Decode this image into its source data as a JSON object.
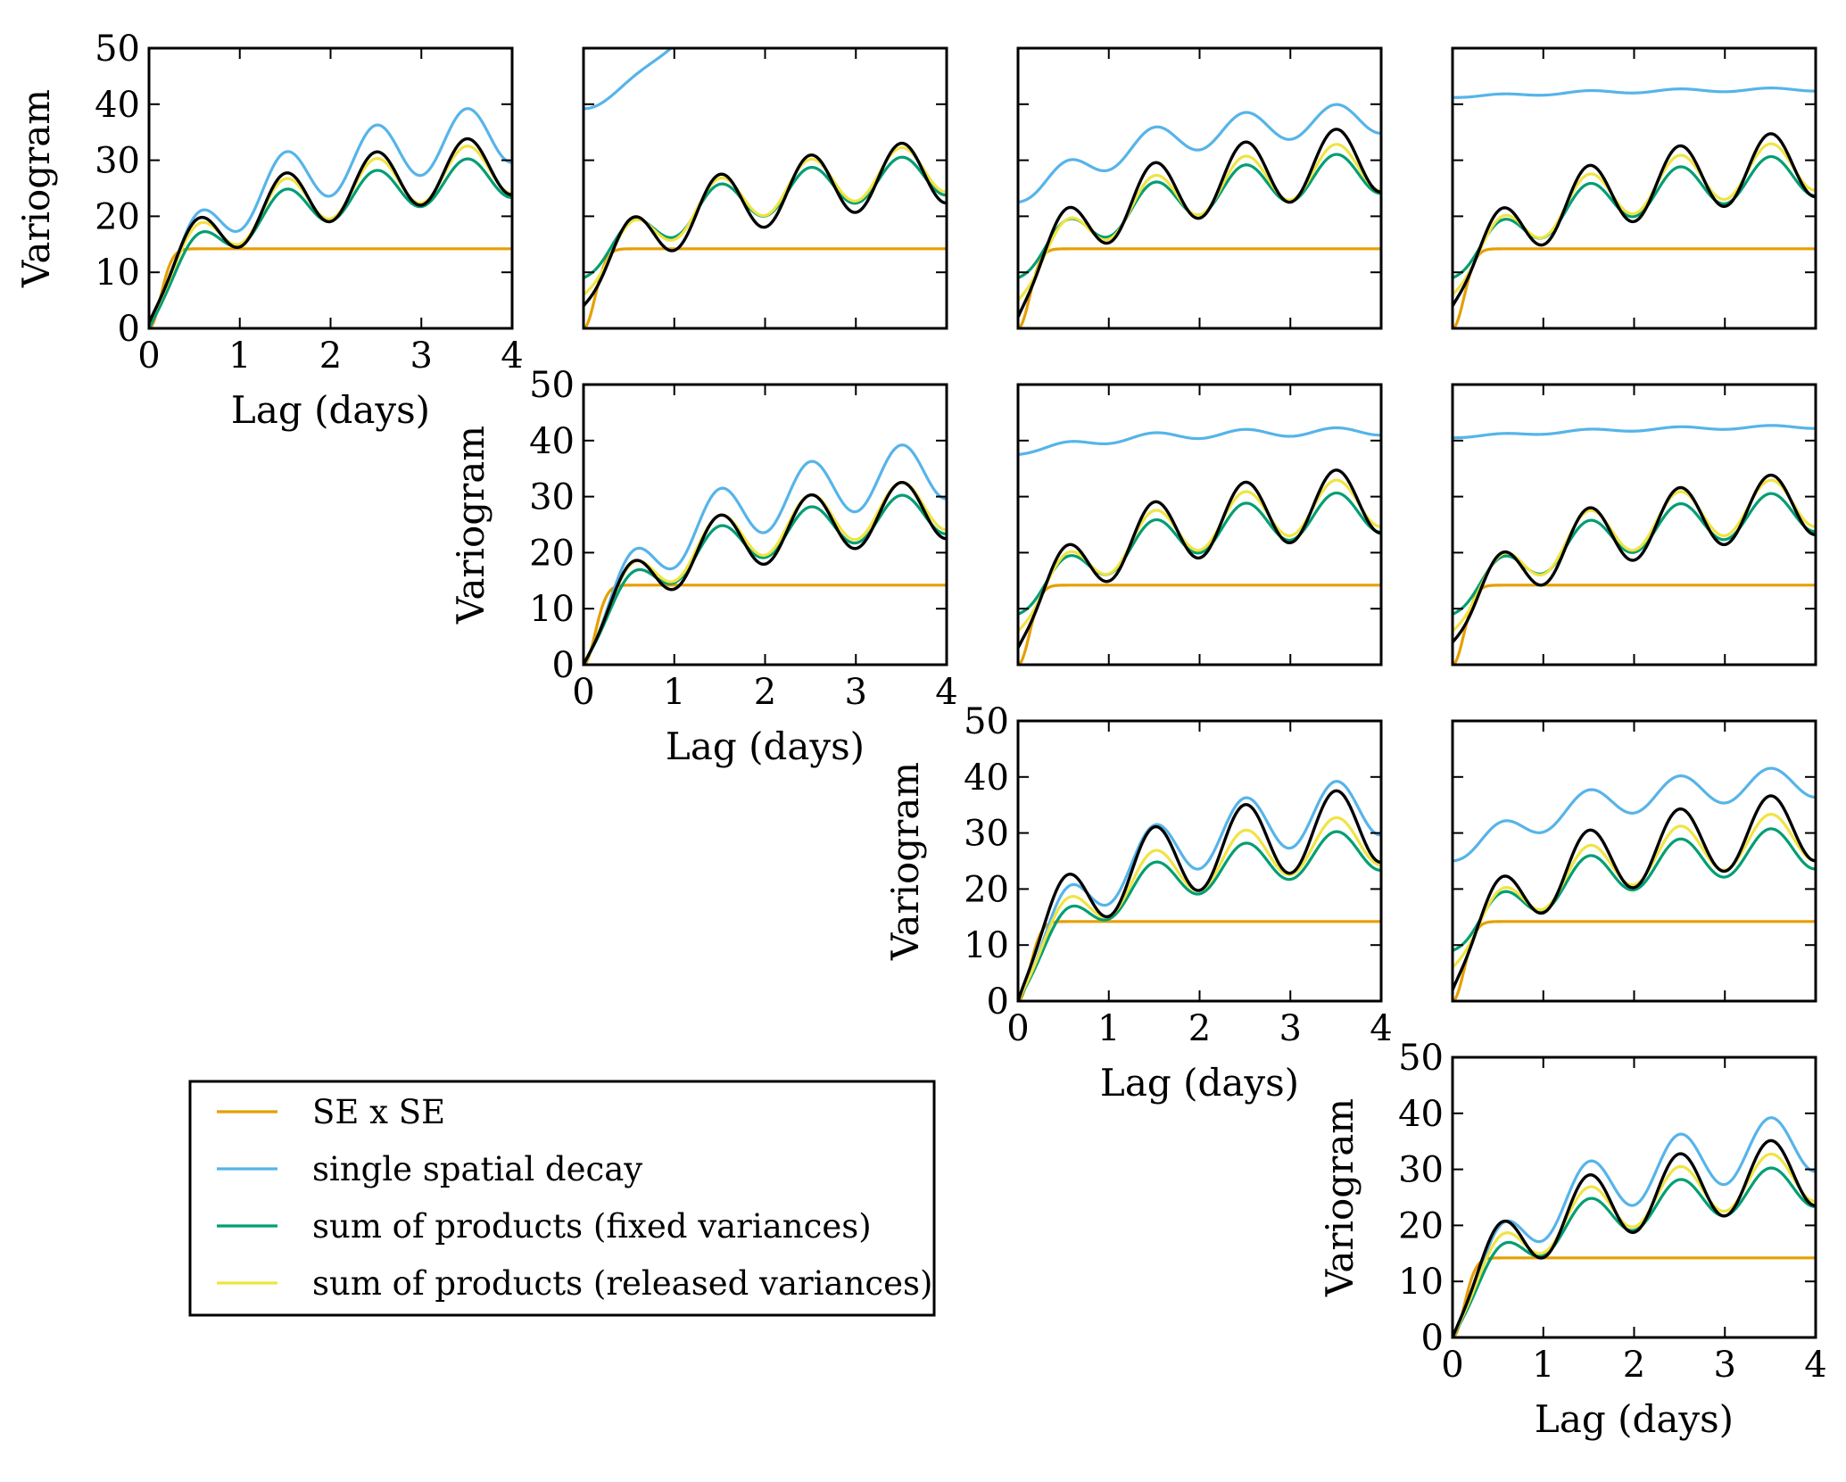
{
  "chart_data": {
    "type": "line",
    "layout": "lower-triangular grid of 10 variogram panels (4 rows, 4 columns)",
    "legend": {
      "placement": "lower-left",
      "entries": [
        {
          "label": "SE x SE",
          "color": "#E69F00"
        },
        {
          "label": "single spatial decay",
          "color": "#56B4E9"
        },
        {
          "label": "sum of products (fixed variances)",
          "color": "#009E73"
        },
        {
          "label": "sum of products (released variances)",
          "color": "#F0E442"
        }
      ]
    },
    "empirical_color": "#000000",
    "xlim": [
      0,
      4
    ],
    "ylim": [
      0,
      50
    ],
    "xticks": [
      "0",
      "1",
      "2",
      "3",
      "4"
    ],
    "yticks": [
      "0",
      "10",
      "20",
      "30",
      "40",
      "50"
    ],
    "xlabel": "Lag (days)",
    "ylabel": "Variogram",
    "panels": [
      {
        "row": 0,
        "col": 0,
        "show_x_labels": true,
        "show_y_labels": true,
        "empirical": {
          "start": 1,
          "a": 12.5,
          "b": 20,
          "tau": 0.22,
          "c": 5.4,
          "phase": "cos"
        },
        "fixed": {
          "start": 0,
          "a": 12.5,
          "b": 17.5,
          "tau": 0.28,
          "c": 3.8,
          "phase": "cos"
        },
        "released": {
          "start": 1,
          "a": 12.8,
          "b": 19,
          "tau": 0.25,
          "c": 4.6,
          "phase": "cos"
        },
        "se_sill": 14.2,
        "single": {
          "start": 0,
          "a": 14,
          "b": 25,
          "tau": 0.28,
          "c": 5.3,
          "phase": "cos"
        }
      },
      {
        "row": 0,
        "col": 1,
        "show_x_labels": false,
        "show_y_labels": false,
        "empirical": {
          "start": 4,
          "a": 13,
          "b": 18,
          "tau": 0.25,
          "c": 5.7,
          "phase": "cos"
        },
        "fixed": {
          "start": 9,
          "a": 14.5,
          "b": 15.5,
          "tau": 0.3,
          "c": 3.7,
          "phase": "cos"
        },
        "released": {
          "start": 6,
          "a": 14,
          "b": 17.5,
          "tau": 0.3,
          "c": 4.3,
          "phase": "cos"
        },
        "se_sill": 14.2,
        "single": {
          "start": 39.2,
          "a": 40.5,
          "b": 42,
          "tau": 0.8,
          "c": 0.6,
          "phase": "cos"
        }
      },
      {
        "row": 0,
        "col": 2,
        "show_x_labels": false,
        "show_y_labels": false,
        "empirical": {
          "start": 2,
          "a": 14,
          "b": 19.5,
          "tau": 0.22,
          "c": 6,
          "phase": "cos"
        },
        "fixed": {
          "start": 9,
          "a": 14.5,
          "b": 16,
          "tau": 0.3,
          "c": 3.8,
          "phase": "cos"
        },
        "released": {
          "start": 5,
          "a": 14,
          "b": 18,
          "tau": 0.28,
          "c": 4.5,
          "phase": "cos"
        },
        "se_sill": 14.2,
        "single": {
          "start": 22.5,
          "a": 28,
          "b": 11.5,
          "tau": 0.5,
          "c": 2.8,
          "phase": "cos"
        }
      },
      {
        "row": 0,
        "col": 3,
        "show_x_labels": false,
        "show_y_labels": false,
        "empirical": {
          "start": 4,
          "a": 14,
          "b": 18.5,
          "tau": 0.22,
          "c": 6,
          "phase": "cos"
        },
        "fixed": {
          "start": 9,
          "a": 14.5,
          "b": 15.5,
          "tau": 0.3,
          "c": 3.8,
          "phase": "cos"
        },
        "released": {
          "start": 6,
          "a": 14.5,
          "b": 17.5,
          "tau": 0.28,
          "c": 4.5,
          "phase": "cos"
        },
        "se_sill": 14.2,
        "single": {
          "start": 41.2,
          "a": 42,
          "b": 0.8,
          "tau": 1,
          "c": 0.3,
          "phase": "cos"
        }
      },
      {
        "row": 1,
        "col": 1,
        "show_x_labels": true,
        "show_y_labels": true,
        "empirical": {
          "start": 0,
          "a": 12,
          "b": 19,
          "tau": 0.25,
          "c": 5.4,
          "phase": "cos"
        },
        "fixed": {
          "start": 0,
          "a": 12.5,
          "b": 17.5,
          "tau": 0.3,
          "c": 3.8,
          "phase": "cos"
        },
        "released": {
          "start": 0,
          "a": 12.8,
          "b": 19,
          "tau": 0.27,
          "c": 4.6,
          "phase": "cos"
        },
        "se_sill": 14.2,
        "single": {
          "start": 0,
          "a": 14,
          "b": 25,
          "tau": 0.3,
          "c": 5.3,
          "phase": "cos"
        }
      },
      {
        "row": 1,
        "col": 2,
        "show_x_labels": false,
        "show_y_labels": false,
        "empirical": {
          "start": 3,
          "a": 14,
          "b": 18.5,
          "tau": 0.22,
          "c": 6,
          "phase": "cos"
        },
        "fixed": {
          "start": 9,
          "a": 14.5,
          "b": 15.5,
          "tau": 0.3,
          "c": 3.8,
          "phase": "cos"
        },
        "released": {
          "start": 6,
          "a": 14.5,
          "b": 17.5,
          "tau": 0.28,
          "c": 4.5,
          "phase": "cos"
        },
        "se_sill": 14.2,
        "single": {
          "start": 37.5,
          "a": 40,
          "b": 2,
          "tau": 0.6,
          "c": 0.7,
          "phase": "cos"
        }
      },
      {
        "row": 1,
        "col": 3,
        "show_x_labels": false,
        "show_y_labels": false,
        "empirical": {
          "start": 4,
          "a": 13,
          "b": 19,
          "tau": 0.25,
          "c": 5.7,
          "phase": "cos"
        },
        "fixed": {
          "start": 9,
          "a": 14.5,
          "b": 15.5,
          "tau": 0.3,
          "c": 3.7,
          "phase": "cos"
        },
        "released": {
          "start": 6,
          "a": 14.5,
          "b": 17.5,
          "tau": 0.3,
          "c": 4.5,
          "phase": "cos"
        },
        "se_sill": 14.2,
        "single": {
          "start": 40.5,
          "a": 41.5,
          "b": 1.2,
          "tau": 1,
          "c": 0.3,
          "phase": "cos"
        }
      },
      {
        "row": 2,
        "col": 2,
        "show_x_labels": true,
        "show_y_labels": true,
        "empirical": {
          "start": 0,
          "a": 14,
          "b": 21,
          "tau": 0.2,
          "c": 6.8,
          "phase": "cos"
        },
        "fixed": {
          "start": 0,
          "a": 12.5,
          "b": 17.5,
          "tau": 0.3,
          "c": 3.8,
          "phase": "cos"
        },
        "released": {
          "start": 0,
          "a": 13,
          "b": 19,
          "tau": 0.27,
          "c": 4.6,
          "phase": "cos"
        },
        "se_sill": 14.2,
        "single": {
          "start": 0,
          "a": 14,
          "b": 25,
          "tau": 0.3,
          "c": 5.3,
          "phase": "cos"
        }
      },
      {
        "row": 2,
        "col": 3,
        "show_x_labels": false,
        "show_y_labels": false,
        "empirical": {
          "start": 2,
          "a": 14.5,
          "b": 20,
          "tau": 0.22,
          "c": 6.2,
          "phase": "cos"
        },
        "fixed": {
          "start": 9,
          "a": 14.5,
          "b": 15.5,
          "tau": 0.3,
          "c": 3.9,
          "phase": "cos"
        },
        "released": {
          "start": 6,
          "a": 14.5,
          "b": 18,
          "tau": 0.28,
          "c": 4.5,
          "phase": "cos"
        },
        "se_sill": 14.2,
        "single": {
          "start": 25,
          "a": 30,
          "b": 11,
          "tau": 0.5,
          "c": 2.8,
          "phase": "cos"
        }
      },
      {
        "row": 3,
        "col": 3,
        "show_x_labels": true,
        "show_y_labels": true,
        "empirical": {
          "start": 0,
          "a": 13,
          "b": 20,
          "tau": 0.22,
          "c": 6.2,
          "phase": "cos"
        },
        "fixed": {
          "start": 0,
          "a": 12.5,
          "b": 17.5,
          "tau": 0.3,
          "c": 3.8,
          "phase": "cos"
        },
        "released": {
          "start": 0,
          "a": 13,
          "b": 19,
          "tau": 0.27,
          "c": 4.6,
          "phase": "cos"
        },
        "se_sill": 14.2,
        "single": {
          "start": 0,
          "a": 14,
          "b": 25,
          "tau": 0.3,
          "c": 5.3,
          "phase": "cos"
        }
      }
    ]
  }
}
